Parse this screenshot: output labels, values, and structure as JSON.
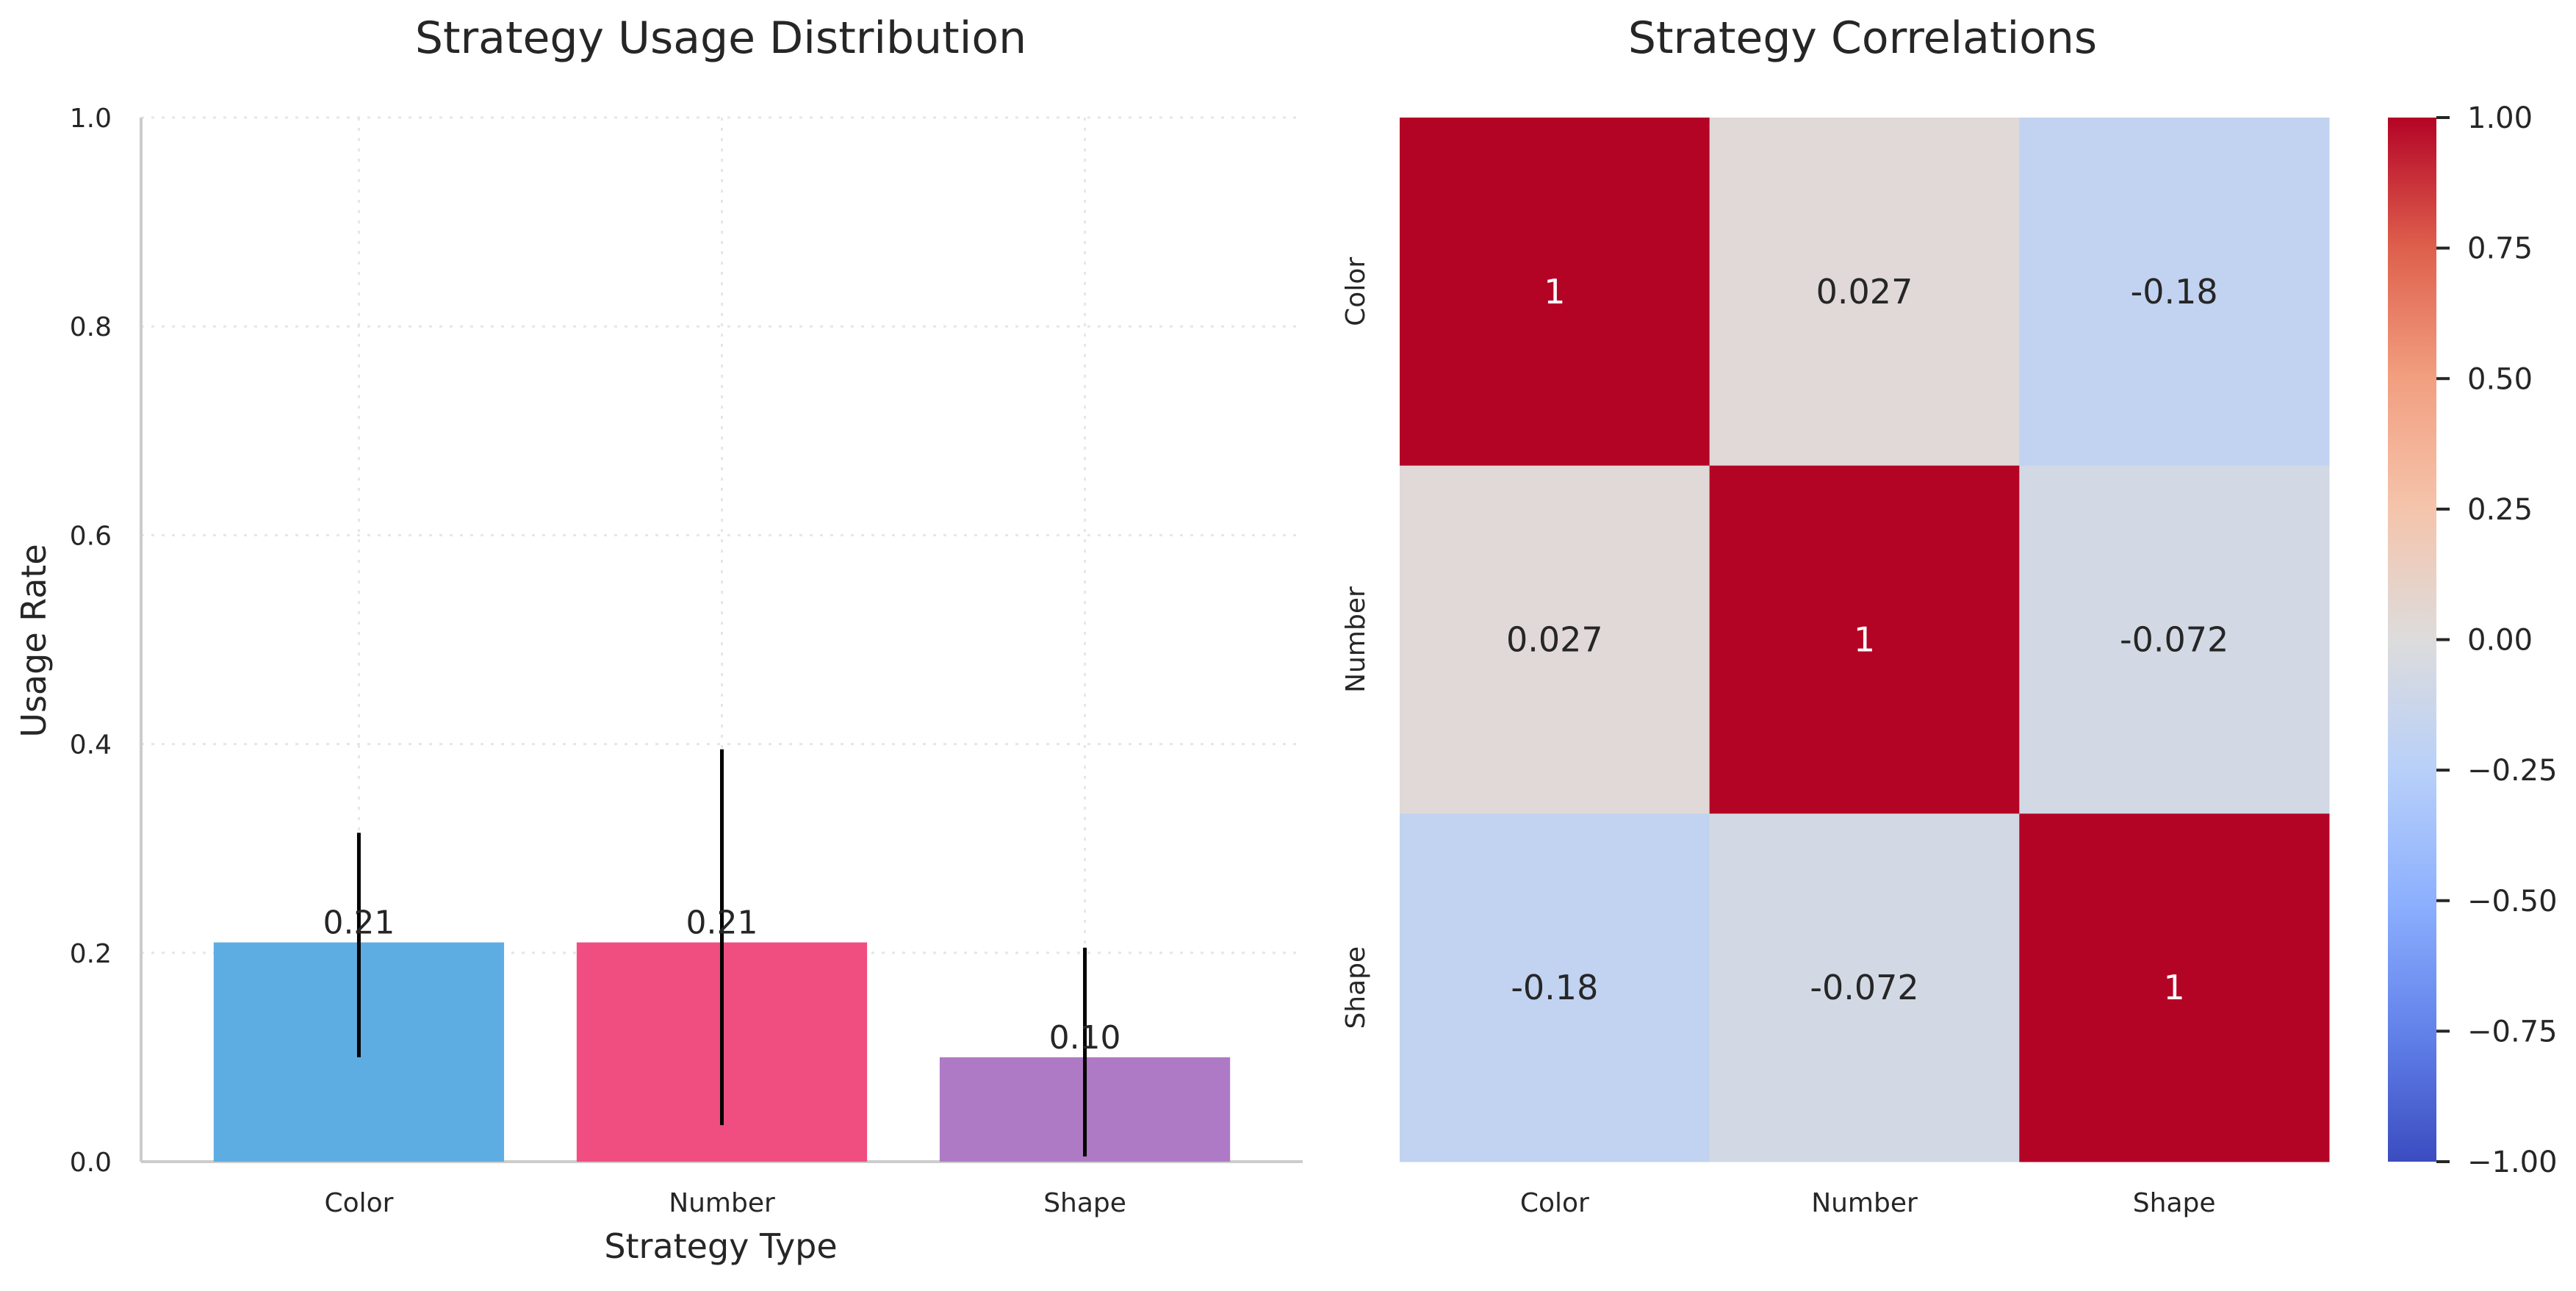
{
  "chart_data": [
    {
      "type": "bar",
      "title": "Strategy Usage Distribution",
      "xlabel": "Strategy Type",
      "ylabel": "Usage Rate",
      "categories": [
        "Color",
        "Number",
        "Shape"
      ],
      "values": [
        0.21,
        0.21,
        0.1
      ],
      "error_bars": [
        {
          "low": 0.1,
          "high": 0.315
        },
        {
          "low": 0.035,
          "high": 0.395
        },
        {
          "low": 0.005,
          "high": 0.205
        }
      ],
      "data_labels": [
        "0.21",
        "0.21",
        "0.10"
      ],
      "ylim": [
        0,
        1.0
      ],
      "yticks": [
        "0.0",
        "0.2",
        "0.4",
        "0.6",
        "0.8",
        "1.0"
      ],
      "grid": true,
      "colors": [
        "#5DADE2",
        "#F04E80",
        "#AF7AC5"
      ]
    },
    {
      "type": "heatmap",
      "title": "Strategy Correlations",
      "rows": [
        "Color",
        "Number",
        "Shape"
      ],
      "columns": [
        "Color",
        "Number",
        "Shape"
      ],
      "values": [
        [
          1,
          0.027,
          -0.18
        ],
        [
          0.027,
          1,
          -0.072
        ],
        [
          -0.18,
          -0.072,
          1
        ]
      ],
      "cell_labels": [
        [
          "1",
          "0.027",
          "-0.18"
        ],
        [
          "0.027",
          "1",
          "-0.072"
        ],
        [
          "-0.18",
          "-0.072",
          "1"
        ]
      ],
      "colormap": "coolwarm",
      "vmin": -1.0,
      "vmax": 1.0,
      "colorbar_ticks": [
        "1.00",
        "0.75",
        "0.50",
        "0.25",
        "0.00",
        "−0.25",
        "−0.50",
        "−0.75",
        "−1.00"
      ]
    }
  ]
}
